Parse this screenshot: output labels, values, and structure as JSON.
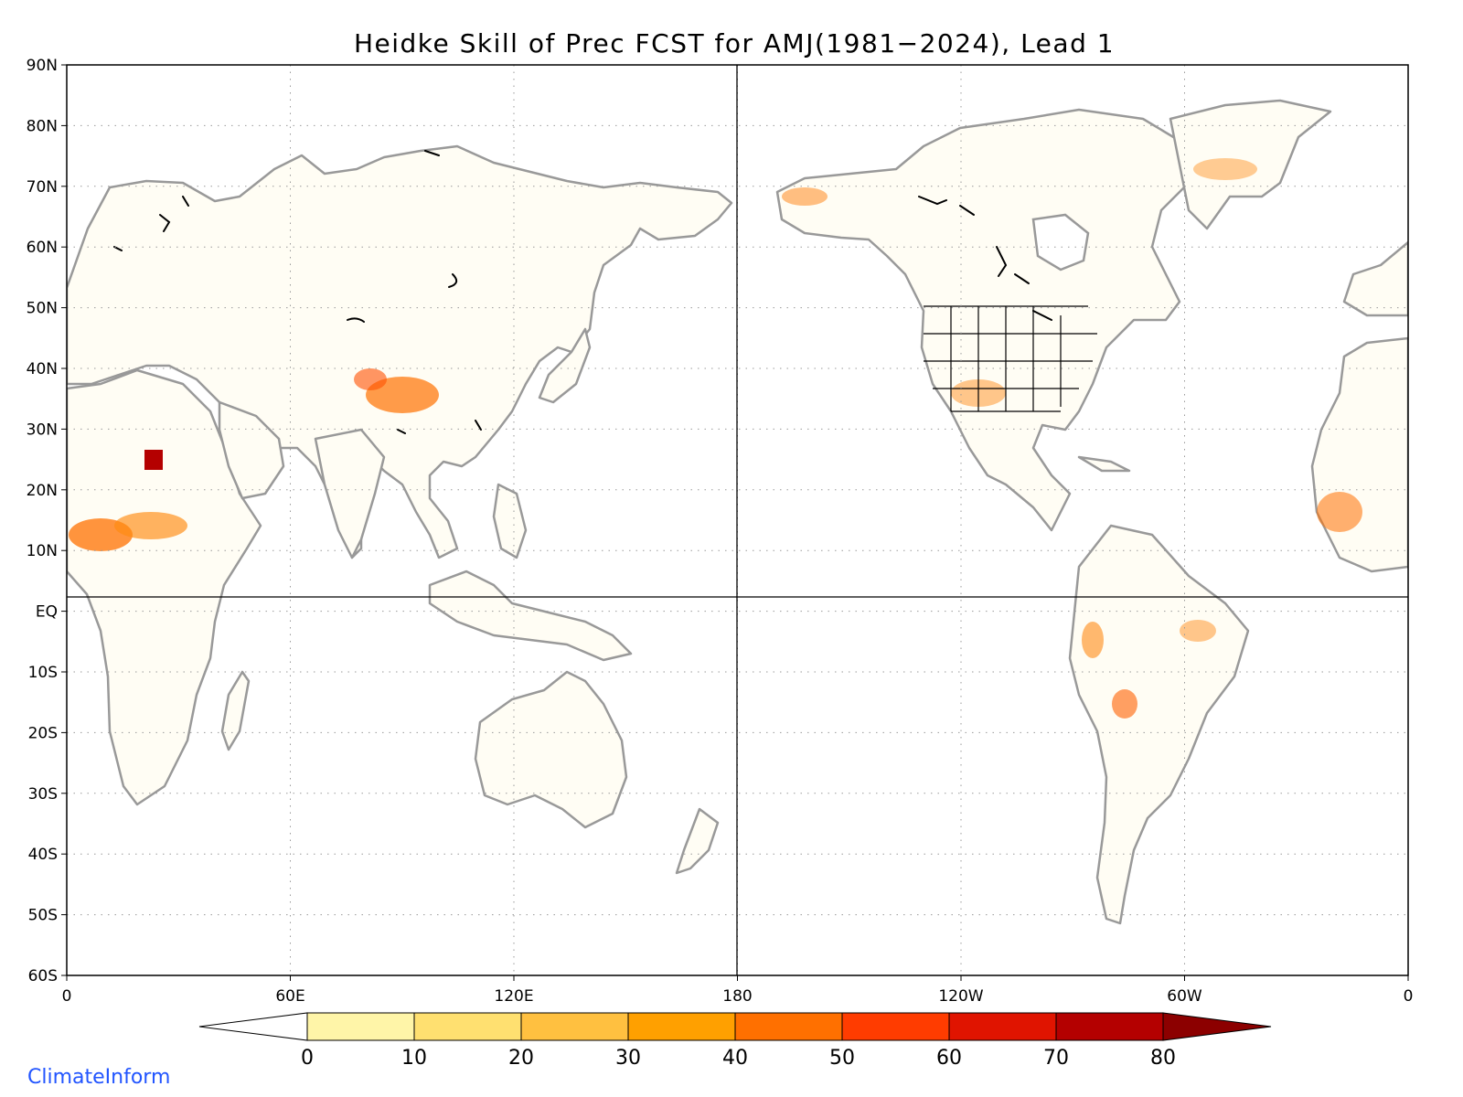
{
  "title": "Heidke Skill of Prec FCST for AMJ(1981−2024), Lead 1",
  "lat_labels": [
    "90N",
    "80N",
    "70N",
    "60N",
    "50N",
    "40N",
    "30N",
    "20N",
    "10N",
    "EQ",
    "10S",
    "20S",
    "30S",
    "40S",
    "50S",
    "60S"
  ],
  "lon_labels": [
    "0",
    "60E",
    "120E",
    "180",
    "120W",
    "60W",
    "0"
  ],
  "colorbar": {
    "ticks": [
      "0",
      "10",
      "20",
      "30",
      "40",
      "50",
      "60",
      "70",
      "80"
    ],
    "colors": [
      "#ffffff",
      "#fff5a8",
      "#ffe070",
      "#ffc040",
      "#ffa000",
      "#ff7000",
      "#ff3c00",
      "#e01400",
      "#b40000",
      "#8c0000"
    ]
  },
  "credit": "ClimateInform"
}
